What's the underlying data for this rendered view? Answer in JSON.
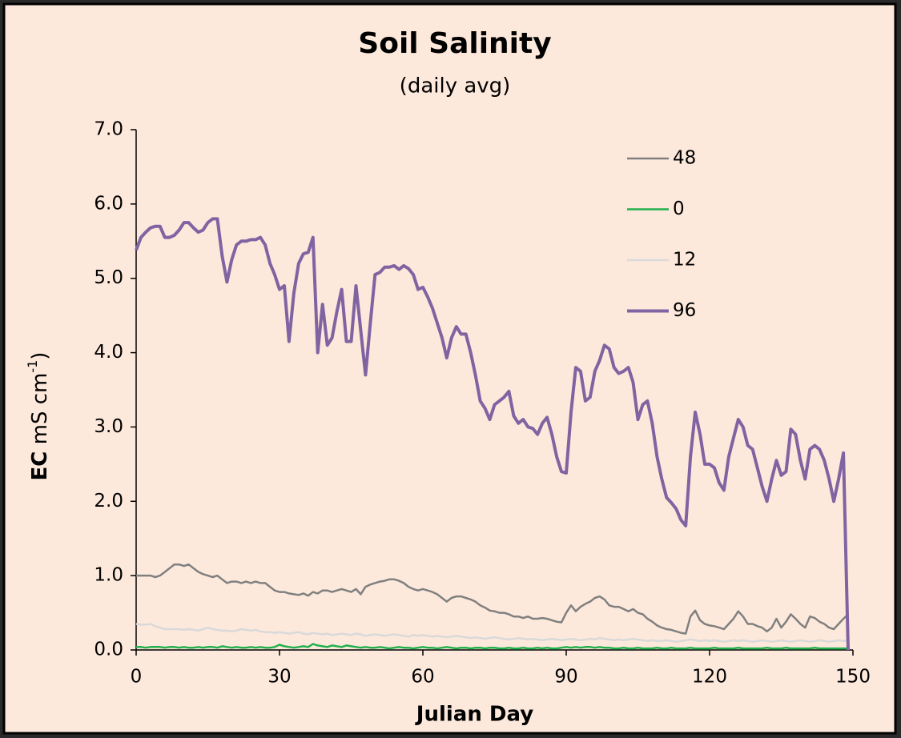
{
  "chart_data": {
    "type": "line",
    "title": "Soil Salinity",
    "subtitle": "(daily avg)",
    "x_label": "Julian Day",
    "y_label": {
      "quantity": "EC",
      "unit": "mS cm",
      "exponent": "-1",
      "tail": ")"
    },
    "xlim": [
      0,
      150
    ],
    "xticks": [
      0,
      30,
      60,
      90,
      120,
      150
    ],
    "ylim": [
      0,
      7
    ],
    "yticks": [
      {
        "value": 0,
        "label": "0.0"
      },
      {
        "value": 1,
        "label": "1.0"
      },
      {
        "value": 2,
        "label": "2.0"
      },
      {
        "value": 3,
        "label": "3.0"
      },
      {
        "value": 4,
        "label": "4.0"
      },
      {
        "value": 5,
        "label": "5.0"
      },
      {
        "value": 6,
        "label": "6.0"
      },
      {
        "value": 7,
        "label": "7.0"
      }
    ],
    "x": [
      0,
      1,
      2,
      3,
      4,
      5,
      6,
      7,
      8,
      9,
      10,
      11,
      12,
      13,
      14,
      15,
      16,
      17,
      18,
      19,
      20,
      21,
      22,
      23,
      24,
      25,
      26,
      27,
      28,
      29,
      30,
      31,
      32,
      33,
      34,
      35,
      36,
      37,
      38,
      39,
      40,
      41,
      42,
      43,
      44,
      45,
      46,
      47,
      48,
      49,
      50,
      51,
      52,
      53,
      54,
      55,
      56,
      57,
      58,
      59,
      60,
      61,
      62,
      63,
      64,
      65,
      66,
      67,
      68,
      69,
      70,
      71,
      72,
      73,
      74,
      75,
      76,
      77,
      78,
      79,
      80,
      81,
      82,
      83,
      84,
      85,
      86,
      87,
      88,
      89,
      90,
      91,
      92,
      93,
      94,
      95,
      96,
      97,
      98,
      99,
      100,
      101,
      102,
      103,
      104,
      105,
      106,
      107,
      108,
      109,
      110,
      111,
      112,
      113,
      114,
      115,
      116,
      117,
      118,
      119,
      120,
      121,
      122,
      123,
      124,
      125,
      126,
      127,
      128,
      129,
      130,
      131,
      132,
      133,
      134,
      135,
      136,
      137,
      138,
      139,
      140,
      141,
      142,
      143,
      144,
      145,
      146,
      147,
      148,
      149
    ],
    "series": [
      {
        "name": "48",
        "color": "#808080",
        "width": 2.5,
        "values": [
          1.0,
          1.0,
          1.0,
          1.0,
          0.98,
          1.0,
          1.05,
          1.1,
          1.15,
          1.15,
          1.13,
          1.15,
          1.1,
          1.05,
          1.02,
          1.0,
          0.98,
          1.0,
          0.95,
          0.9,
          0.92,
          0.92,
          0.9,
          0.92,
          0.9,
          0.92,
          0.9,
          0.9,
          0.85,
          0.8,
          0.78,
          0.78,
          0.76,
          0.75,
          0.74,
          0.76,
          0.73,
          0.78,
          0.76,
          0.8,
          0.8,
          0.78,
          0.8,
          0.82,
          0.8,
          0.78,
          0.82,
          0.75,
          0.85,
          0.88,
          0.9,
          0.92,
          0.93,
          0.95,
          0.95,
          0.93,
          0.9,
          0.85,
          0.82,
          0.8,
          0.82,
          0.8,
          0.78,
          0.75,
          0.7,
          0.65,
          0.7,
          0.72,
          0.72,
          0.7,
          0.68,
          0.65,
          0.6,
          0.57,
          0.53,
          0.52,
          0.5,
          0.5,
          0.48,
          0.45,
          0.45,
          0.43,
          0.45,
          0.42,
          0.42,
          0.43,
          0.42,
          0.4,
          0.38,
          0.37,
          0.5,
          0.6,
          0.52,
          0.58,
          0.62,
          0.65,
          0.7,
          0.72,
          0.68,
          0.6,
          0.58,
          0.58,
          0.55,
          0.52,
          0.55,
          0.5,
          0.48,
          0.42,
          0.38,
          0.33,
          0.3,
          0.28,
          0.27,
          0.25,
          0.23,
          0.22,
          0.45,
          0.53,
          0.4,
          0.35,
          0.33,
          0.32,
          0.3,
          0.28,
          0.35,
          0.42,
          0.52,
          0.45,
          0.35,
          0.35,
          0.32,
          0.3,
          0.25,
          0.3,
          0.42,
          0.3,
          0.38,
          0.48,
          0.42,
          0.35,
          0.3,
          0.45,
          0.43,
          0.38,
          0.35,
          0.3,
          0.28,
          0.35,
          0.42,
          0.48
        ]
      },
      {
        "name": "0",
        "color": "#22b04c",
        "width": 2.5,
        "values": [
          0.04,
          0.04,
          0.03,
          0.04,
          0.04,
          0.04,
          0.03,
          0.04,
          0.04,
          0.03,
          0.04,
          0.03,
          0.03,
          0.04,
          0.03,
          0.04,
          0.04,
          0.03,
          0.05,
          0.04,
          0.03,
          0.04,
          0.03,
          0.03,
          0.04,
          0.03,
          0.04,
          0.03,
          0.03,
          0.04,
          0.07,
          0.05,
          0.04,
          0.03,
          0.04,
          0.05,
          0.04,
          0.08,
          0.06,
          0.05,
          0.04,
          0.06,
          0.05,
          0.04,
          0.06,
          0.05,
          0.04,
          0.03,
          0.04,
          0.03,
          0.03,
          0.04,
          0.03,
          0.02,
          0.03,
          0.04,
          0.03,
          0.03,
          0.02,
          0.03,
          0.04,
          0.03,
          0.03,
          0.02,
          0.03,
          0.04,
          0.03,
          0.02,
          0.03,
          0.03,
          0.02,
          0.03,
          0.03,
          0.02,
          0.03,
          0.03,
          0.02,
          0.02,
          0.03,
          0.02,
          0.02,
          0.03,
          0.02,
          0.02,
          0.03,
          0.02,
          0.03,
          0.02,
          0.02,
          0.03,
          0.04,
          0.03,
          0.04,
          0.03,
          0.04,
          0.04,
          0.03,
          0.04,
          0.03,
          0.03,
          0.02,
          0.02,
          0.03,
          0.02,
          0.02,
          0.03,
          0.02,
          0.02,
          0.02,
          0.03,
          0.02,
          0.02,
          0.03,
          0.02,
          0.02,
          0.02,
          0.03,
          0.02,
          0.02,
          0.02,
          0.02,
          0.03,
          0.02,
          0.02,
          0.02,
          0.02,
          0.03,
          0.02,
          0.02,
          0.02,
          0.02,
          0.02,
          0.03,
          0.02,
          0.02,
          0.02,
          0.03,
          0.02,
          0.02,
          0.02,
          0.02,
          0.02,
          0.03,
          0.02,
          0.02,
          0.02,
          0.02,
          0.02,
          0.02,
          0.02
        ]
      },
      {
        "name": "12",
        "color": "#d9d9d9",
        "width": 2.5,
        "values": [
          0.35,
          0.34,
          0.34,
          0.35,
          0.32,
          0.3,
          0.28,
          0.28,
          0.28,
          0.28,
          0.27,
          0.28,
          0.27,
          0.26,
          0.28,
          0.3,
          0.28,
          0.27,
          0.26,
          0.26,
          0.25,
          0.26,
          0.28,
          0.27,
          0.26,
          0.27,
          0.25,
          0.24,
          0.24,
          0.23,
          0.24,
          0.23,
          0.22,
          0.23,
          0.24,
          0.22,
          0.21,
          0.23,
          0.22,
          0.21,
          0.22,
          0.2,
          0.21,
          0.22,
          0.21,
          0.2,
          0.22,
          0.21,
          0.19,
          0.2,
          0.21,
          0.2,
          0.19,
          0.2,
          0.21,
          0.2,
          0.19,
          0.18,
          0.2,
          0.19,
          0.2,
          0.19,
          0.18,
          0.19,
          0.18,
          0.17,
          0.18,
          0.19,
          0.18,
          0.17,
          0.16,
          0.17,
          0.16,
          0.15,
          0.16,
          0.17,
          0.16,
          0.15,
          0.14,
          0.15,
          0.16,
          0.15,
          0.14,
          0.15,
          0.14,
          0.13,
          0.14,
          0.15,
          0.14,
          0.13,
          0.14,
          0.15,
          0.14,
          0.13,
          0.14,
          0.15,
          0.14,
          0.16,
          0.15,
          0.14,
          0.13,
          0.14,
          0.13,
          0.14,
          0.15,
          0.14,
          0.13,
          0.12,
          0.13,
          0.12,
          0.12,
          0.13,
          0.12,
          0.11,
          0.12,
          0.13,
          0.14,
          0.13,
          0.12,
          0.13,
          0.12,
          0.13,
          0.12,
          0.11,
          0.12,
          0.13,
          0.12,
          0.13,
          0.12,
          0.11,
          0.12,
          0.13,
          0.12,
          0.11,
          0.12,
          0.13,
          0.12,
          0.11,
          0.12,
          0.13,
          0.12,
          0.11,
          0.12,
          0.13,
          0.12,
          0.11,
          0.12,
          0.13,
          0.12,
          0.13
        ]
      },
      {
        "name": "96",
        "color": "#8064a2",
        "width": 4,
        "values": [
          5.38,
          5.55,
          5.62,
          5.68,
          5.7,
          5.7,
          5.55,
          5.55,
          5.58,
          5.65,
          5.75,
          5.75,
          5.68,
          5.62,
          5.65,
          5.75,
          5.8,
          5.8,
          5.3,
          4.95,
          5.25,
          5.45,
          5.5,
          5.5,
          5.52,
          5.52,
          5.55,
          5.45,
          5.2,
          5.05,
          4.85,
          4.9,
          4.15,
          4.8,
          5.2,
          5.33,
          5.35,
          5.55,
          4.0,
          4.65,
          4.1,
          4.2,
          4.55,
          4.85,
          4.15,
          4.15,
          4.9,
          4.3,
          3.7,
          4.4,
          5.05,
          5.08,
          5.15,
          5.15,
          5.17,
          5.12,
          5.17,
          5.13,
          5.05,
          4.85,
          4.88,
          4.75,
          4.6,
          4.4,
          4.2,
          3.93,
          4.2,
          4.35,
          4.25,
          4.25,
          4.0,
          3.7,
          3.35,
          3.25,
          3.1,
          3.3,
          3.35,
          3.4,
          3.48,
          3.15,
          3.05,
          3.1,
          3.0,
          2.98,
          2.9,
          3.05,
          3.13,
          2.9,
          2.6,
          2.4,
          2.38,
          3.2,
          3.8,
          3.75,
          3.35,
          3.4,
          3.75,
          3.9,
          4.1,
          4.05,
          3.8,
          3.72,
          3.75,
          3.8,
          3.6,
          3.1,
          3.3,
          3.35,
          3.05,
          2.6,
          2.3,
          2.05,
          1.98,
          1.9,
          1.75,
          1.67,
          2.6,
          3.2,
          2.9,
          2.5,
          2.5,
          2.45,
          2.25,
          2.15,
          2.6,
          2.85,
          3.1,
          3.0,
          2.75,
          2.7,
          2.45,
          2.2,
          2.0,
          2.3,
          2.55,
          2.35,
          2.4,
          2.97,
          2.9,
          2.55,
          2.3,
          2.7,
          2.75,
          2.7,
          2.55,
          2.3,
          2.0,
          2.3,
          2.65,
          0.0
        ]
      }
    ],
    "legend": "top-right"
  }
}
